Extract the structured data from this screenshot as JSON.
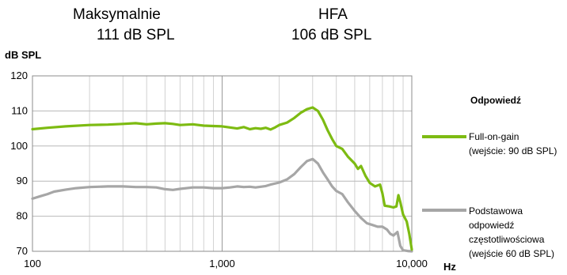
{
  "header": {
    "max_label": "Maksymalnie",
    "max_value": "111 dB SPL",
    "hfa_label": "HFA",
    "hfa_value": "106 dB SPL"
  },
  "chart_data": {
    "type": "line",
    "title": "",
    "ylabel": "dB SPL",
    "xlabel": "Hz",
    "x_scale": "log",
    "xlim": [
      100,
      10000
    ],
    "ylim": [
      70,
      120
    ],
    "x_ticks": [
      100,
      1000,
      10000
    ],
    "x_tick_labels": [
      "100",
      "1,000",
      "10,000"
    ],
    "y_ticks": [
      70,
      80,
      90,
      100,
      110,
      120
    ],
    "grid": "on",
    "legend_position": "right",
    "legend_title": "Odpowiedź",
    "series": [
      {
        "name": "Full-on-gain\n(wejście: 90 dB SPL)",
        "color": "#7dbb12",
        "points": [
          [
            100,
            104.8
          ],
          [
            120,
            105.2
          ],
          [
            150,
            105.6
          ],
          [
            200,
            106.0
          ],
          [
            250,
            106.1
          ],
          [
            300,
            106.3
          ],
          [
            350,
            106.5
          ],
          [
            400,
            106.2
          ],
          [
            450,
            106.4
          ],
          [
            500,
            106.5
          ],
          [
            550,
            106.3
          ],
          [
            600,
            106.0
          ],
          [
            700,
            106.2
          ],
          [
            800,
            105.8
          ],
          [
            900,
            105.7
          ],
          [
            1000,
            105.6
          ],
          [
            1100,
            105.3
          ],
          [
            1200,
            105.0
          ],
          [
            1300,
            105.4
          ],
          [
            1400,
            104.8
          ],
          [
            1500,
            105.1
          ],
          [
            1600,
            104.9
          ],
          [
            1700,
            105.2
          ],
          [
            1800,
            104.7
          ],
          [
            1900,
            105.3
          ],
          [
            2000,
            106.0
          ],
          [
            2200,
            106.7
          ],
          [
            2400,
            108.0
          ],
          [
            2600,
            109.5
          ],
          [
            2800,
            110.5
          ],
          [
            3000,
            111.0
          ],
          [
            3200,
            110.0
          ],
          [
            3400,
            107.5
          ],
          [
            3600,
            104.5
          ],
          [
            3800,
            102.0
          ],
          [
            4000,
            100.0
          ],
          [
            4300,
            99.2
          ],
          [
            4600,
            97.0
          ],
          [
            5000,
            95.0
          ],
          [
            5200,
            93.5
          ],
          [
            5400,
            94.3
          ],
          [
            5700,
            91.5
          ],
          [
            6000,
            89.5
          ],
          [
            6400,
            88.5
          ],
          [
            6800,
            89.0
          ],
          [
            7000,
            86.5
          ],
          [
            7200,
            83.0
          ],
          [
            7600,
            82.8
          ],
          [
            8000,
            82.5
          ],
          [
            8300,
            82.8
          ],
          [
            8500,
            86.0
          ],
          [
            8700,
            84.0
          ],
          [
            9000,
            80.5
          ],
          [
            9400,
            78.5
          ],
          [
            9700,
            75.0
          ],
          [
            10000,
            70.5
          ]
        ]
      },
      {
        "name": "Podstawowa\nodpowiedź\nczęstotliwościowa\n(wejście 60 dB SPL)",
        "color": "#a6a6a6",
        "points": [
          [
            100,
            85.0
          ],
          [
            110,
            85.7
          ],
          [
            120,
            86.3
          ],
          [
            130,
            87.0
          ],
          [
            150,
            87.6
          ],
          [
            170,
            88.0
          ],
          [
            200,
            88.3
          ],
          [
            250,
            88.5
          ],
          [
            300,
            88.5
          ],
          [
            350,
            88.3
          ],
          [
            400,
            88.3
          ],
          [
            450,
            88.2
          ],
          [
            500,
            87.7
          ],
          [
            550,
            87.5
          ],
          [
            600,
            87.8
          ],
          [
            700,
            88.2
          ],
          [
            800,
            88.2
          ],
          [
            900,
            88.0
          ],
          [
            1000,
            88.0
          ],
          [
            1100,
            88.2
          ],
          [
            1200,
            88.5
          ],
          [
            1300,
            88.3
          ],
          [
            1400,
            88.4
          ],
          [
            1500,
            88.2
          ],
          [
            1600,
            88.4
          ],
          [
            1700,
            88.6
          ],
          [
            1800,
            89.0
          ],
          [
            2000,
            89.6
          ],
          [
            2200,
            90.5
          ],
          [
            2400,
            92.0
          ],
          [
            2600,
            94.0
          ],
          [
            2800,
            95.7
          ],
          [
            3000,
            96.3
          ],
          [
            3200,
            95.0
          ],
          [
            3400,
            92.5
          ],
          [
            3600,
            90.5
          ],
          [
            3800,
            88.5
          ],
          [
            4000,
            87.2
          ],
          [
            4300,
            86.3
          ],
          [
            4600,
            84.0
          ],
          [
            5000,
            81.5
          ],
          [
            5400,
            79.5
          ],
          [
            5800,
            78.0
          ],
          [
            6200,
            77.5
          ],
          [
            6600,
            77.0
          ],
          [
            7000,
            77.0
          ],
          [
            7400,
            76.2
          ],
          [
            7700,
            75.0
          ],
          [
            8000,
            74.5
          ],
          [
            8400,
            75.5
          ],
          [
            8700,
            71.5
          ],
          [
            9000,
            70.3
          ],
          [
            9500,
            70.1
          ],
          [
            10000,
            70.0
          ]
        ]
      }
    ]
  }
}
